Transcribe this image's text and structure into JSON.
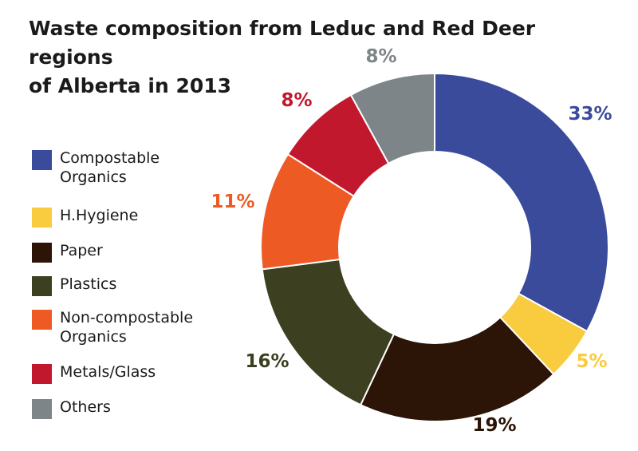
{
  "chart_data": {
    "type": "pie",
    "variant": "donut",
    "title_lines": [
      "Waste composition from Leduc and Red Deer regions",
      "of Alberta in 2013"
    ],
    "legend_position": "left",
    "slices": [
      {
        "label_lines": [
          "Compostable",
          "Organics"
        ],
        "value": 33,
        "value_label": "33%",
        "color": "#3a4b9c"
      },
      {
        "label_lines": [
          "H.Hygiene"
        ],
        "value": 5,
        "value_label": "5%",
        "color": "#f9cb3f"
      },
      {
        "label_lines": [
          "Paper"
        ],
        "value": 19,
        "value_label": "19%",
        "color": "#2c1406"
      },
      {
        "label_lines": [
          "Plastics"
        ],
        "value": 16,
        "value_label": "16%",
        "color": "#3d3f21"
      },
      {
        "label_lines": [
          "Non-compostable",
          "Organics"
        ],
        "value": 11,
        "value_label": "11%",
        "color": "#ee5a24"
      },
      {
        "label_lines": [
          "Metals/Glass"
        ],
        "value": 8,
        "value_label": "8%",
        "color": "#c2182d"
      },
      {
        "label_lines": [
          "Others"
        ],
        "value": 8,
        "value_label": "8%",
        "color": "#7d8588"
      }
    ],
    "label_colors": [
      "#3a4b9c",
      "#f9cb3f",
      "#2c1406",
      "#3d3f21",
      "#ee5a24",
      "#c2182d",
      "#7d8588"
    ]
  }
}
